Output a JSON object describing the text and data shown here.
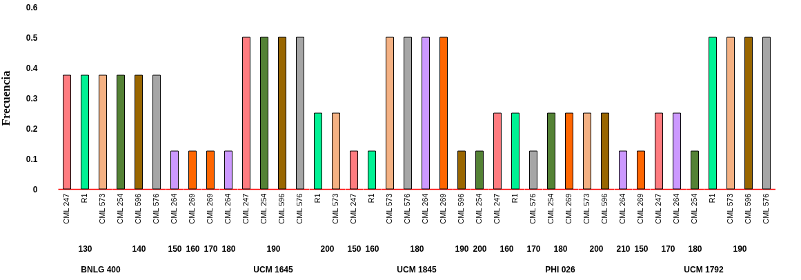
{
  "chart_data": [
    {
      "type": "bar",
      "ylabel": "Frecuencia",
      "ylim": [
        0,
        0.6
      ],
      "yticks": [
        0,
        0.1,
        0.2,
        0.3,
        0.4,
        0.5,
        0.6
      ],
      "xlabel": "130",
      "annotations": [
        "BNLG 400"
      ],
      "categories": [
        "CML 247",
        "R1",
        "CML 573"
      ],
      "values": [
        0.375,
        0.375,
        0.375
      ],
      "colors": [
        "#ff7c80",
        "#00f294",
        "#f4b183"
      ]
    },
    {
      "type": "bar",
      "ylim": [
        0,
        0.6
      ],
      "tick_labels": "x",
      "xlabel": "140",
      "categories": [
        "CML 254",
        "CML 596",
        "CML 576"
      ],
      "values": [
        0.375,
        0.375,
        0.375
      ],
      "colors": [
        "#548235",
        "#996600",
        "#a6a6a6"
      ]
    },
    {
      "type": "bar",
      "ylim": [
        0,
        0.6
      ],
      "tick_labels": "x",
      "xlabel": "150",
      "categories": [
        "CML 264"
      ],
      "values": [
        0.125
      ],
      "colors": [
        "#cc99ff"
      ]
    },
    {
      "type": "bar",
      "ylim": [
        0,
        0.6
      ],
      "tick_labels": "x",
      "xlabel": "160",
      "categories": [
        "CML 269"
      ],
      "values": [
        0.125
      ],
      "colors": [
        "#ff6600"
      ]
    },
    {
      "type": "bar",
      "ylim": [
        0,
        0.6
      ],
      "tick_labels": "x",
      "xlabel": "170",
      "annotations": [
        "UCM 1645"
      ],
      "categories": [
        "CML 269"
      ],
      "values": [
        0.125
      ],
      "colors": [
        "#ff6600"
      ]
    },
    {
      "type": "bar",
      "ylim": [
        0,
        0.6
      ],
      "tick_labels": "x",
      "xlabel": "180",
      "categories": [
        "CML 264"
      ],
      "values": [
        0.125
      ],
      "colors": [
        "#cc99ff"
      ]
    },
    {
      "type": "bar",
      "ylim": [
        0,
        0.6
      ],
      "tick_labels": "x",
      "xlabel": "190",
      "categories": [
        "CML 247",
        "CML 254",
        "CML 596",
        "CML 576"
      ],
      "values": [
        0.5,
        0.5,
        0.5,
        0.5
      ],
      "colors": [
        "#ff7c80",
        "#548235",
        "#996600",
        "#a6a6a6"
      ]
    },
    {
      "type": "bar",
      "ylim": [
        0,
        0.6
      ],
      "tick_labels": "x",
      "xlabel": "200",
      "categories": [
        "R1",
        "CML 573"
      ],
      "values": [
        0.25,
        0.25
      ],
      "colors": [
        "#00f294",
        "#f4b183"
      ]
    },
    {
      "type": "bar",
      "ylim": [
        0,
        0.6
      ],
      "tick_labels": "x",
      "xlabel": "150",
      "annotations": [
        "UCM 1845"
      ],
      "categories": [
        "CML 247"
      ],
      "values": [
        0.125
      ],
      "colors": [
        "#ff7c80"
      ]
    },
    {
      "type": "bar",
      "ylim": [
        0,
        0.6
      ],
      "tick_labels": "x",
      "xlabel": "160",
      "categories": [
        "R1"
      ],
      "values": [
        0.125
      ],
      "colors": [
        "#00f294"
      ]
    },
    {
      "type": "bar",
      "ylim": [
        0,
        0.6
      ],
      "tick_labels": "x",
      "xlabel": "180",
      "categories": [
        "CML 573",
        "CML 576",
        "CML 264",
        "CML 269"
      ],
      "values": [
        0.5,
        0.5,
        0.5,
        0.5
      ],
      "colors": [
        "#f4b183",
        "#a6a6a6",
        "#cc99ff",
        "#ff6600"
      ]
    },
    {
      "type": "bar",
      "ylim": [
        0,
        0.6
      ],
      "tick_labels": "x",
      "xlabel": "190",
      "categories": [
        "CML 596"
      ],
      "values": [
        0.125
      ],
      "colors": [
        "#996600"
      ]
    },
    {
      "type": "bar",
      "ylim": [
        0,
        0.6
      ],
      "tick_labels": "x",
      "xlabel": "200",
      "categories": [
        "CML 254"
      ],
      "values": [
        0.125
      ],
      "colors": [
        "#548235"
      ]
    },
    {
      "type": "bar",
      "ylim": [
        0,
        0.6
      ],
      "tick_labels": "x",
      "xlabel": "160",
      "annotations": [
        "PHI 026"
      ],
      "categories": [
        "CML 247",
        "R1"
      ],
      "values": [
        0.25,
        0.25
      ],
      "colors": [
        "#ff7c80",
        "#00f294"
      ]
    },
    {
      "type": "bar",
      "ylim": [
        0,
        0.6
      ],
      "tick_labels": "x",
      "xlabel": "170",
      "categories": [
        "CML 576"
      ],
      "values": [
        0.125
      ],
      "colors": [
        "#a6a6a6"
      ]
    },
    {
      "type": "bar",
      "ylim": [
        0,
        0.6
      ],
      "tick_labels": "x",
      "xlabel": "180",
      "categories": [
        "CML 254",
        "CML 269"
      ],
      "values": [
        0.25,
        0.25
      ],
      "colors": [
        "#548235",
        "#ff6600"
      ]
    },
    {
      "type": "bar",
      "ylim": [
        0,
        0.6
      ],
      "tick_labels": "x",
      "xlabel": "200",
      "categories": [
        "CML 573",
        "CML 596"
      ],
      "values": [
        0.25,
        0.25
      ],
      "colors": [
        "#f4b183",
        "#996600"
      ]
    },
    {
      "type": "bar",
      "ylim": [
        0,
        0.6
      ],
      "tick_labels": "x",
      "xlabel": "210",
      "categories": [
        "CML 264"
      ],
      "values": [
        0.125
      ],
      "colors": [
        "#cc99ff"
      ]
    },
    {
      "type": "bar",
      "ylim": [
        0,
        0.6
      ],
      "tick_labels": "x",
      "xlabel": "150",
      "annotations": [
        "UCM 1792"
      ],
      "categories": [
        "CML 269"
      ],
      "values": [
        0.125
      ],
      "colors": [
        "#ff6600"
      ]
    },
    {
      "type": "bar",
      "ylim": [
        0,
        0.6
      ],
      "tick_labels": "x",
      "xlabel": "170",
      "categories": [
        "CML 247",
        "CML 264"
      ],
      "values": [
        0.25,
        0.25
      ],
      "colors": [
        "#ff7c80",
        "#cc99ff"
      ]
    },
    {
      "type": "bar",
      "ylim": [
        0,
        0.6
      ],
      "tick_labels": "x",
      "xlabel": "180",
      "categories": [
        "CML 254"
      ],
      "values": [
        0.125
      ],
      "colors": [
        "#548235"
      ]
    },
    {
      "type": "bar",
      "ylim": [
        0,
        0.6
      ],
      "tick_labels": "x",
      "xlabel": "190",
      "categories": [
        "R1",
        "CML 573",
        "CML 596",
        "CML 576"
      ],
      "values": [
        0.5,
        0.5,
        0.5,
        0.5
      ],
      "colors": [
        "#00f294",
        "#f4b183",
        "#996600",
        "#a6a6a6"
      ]
    }
  ]
}
